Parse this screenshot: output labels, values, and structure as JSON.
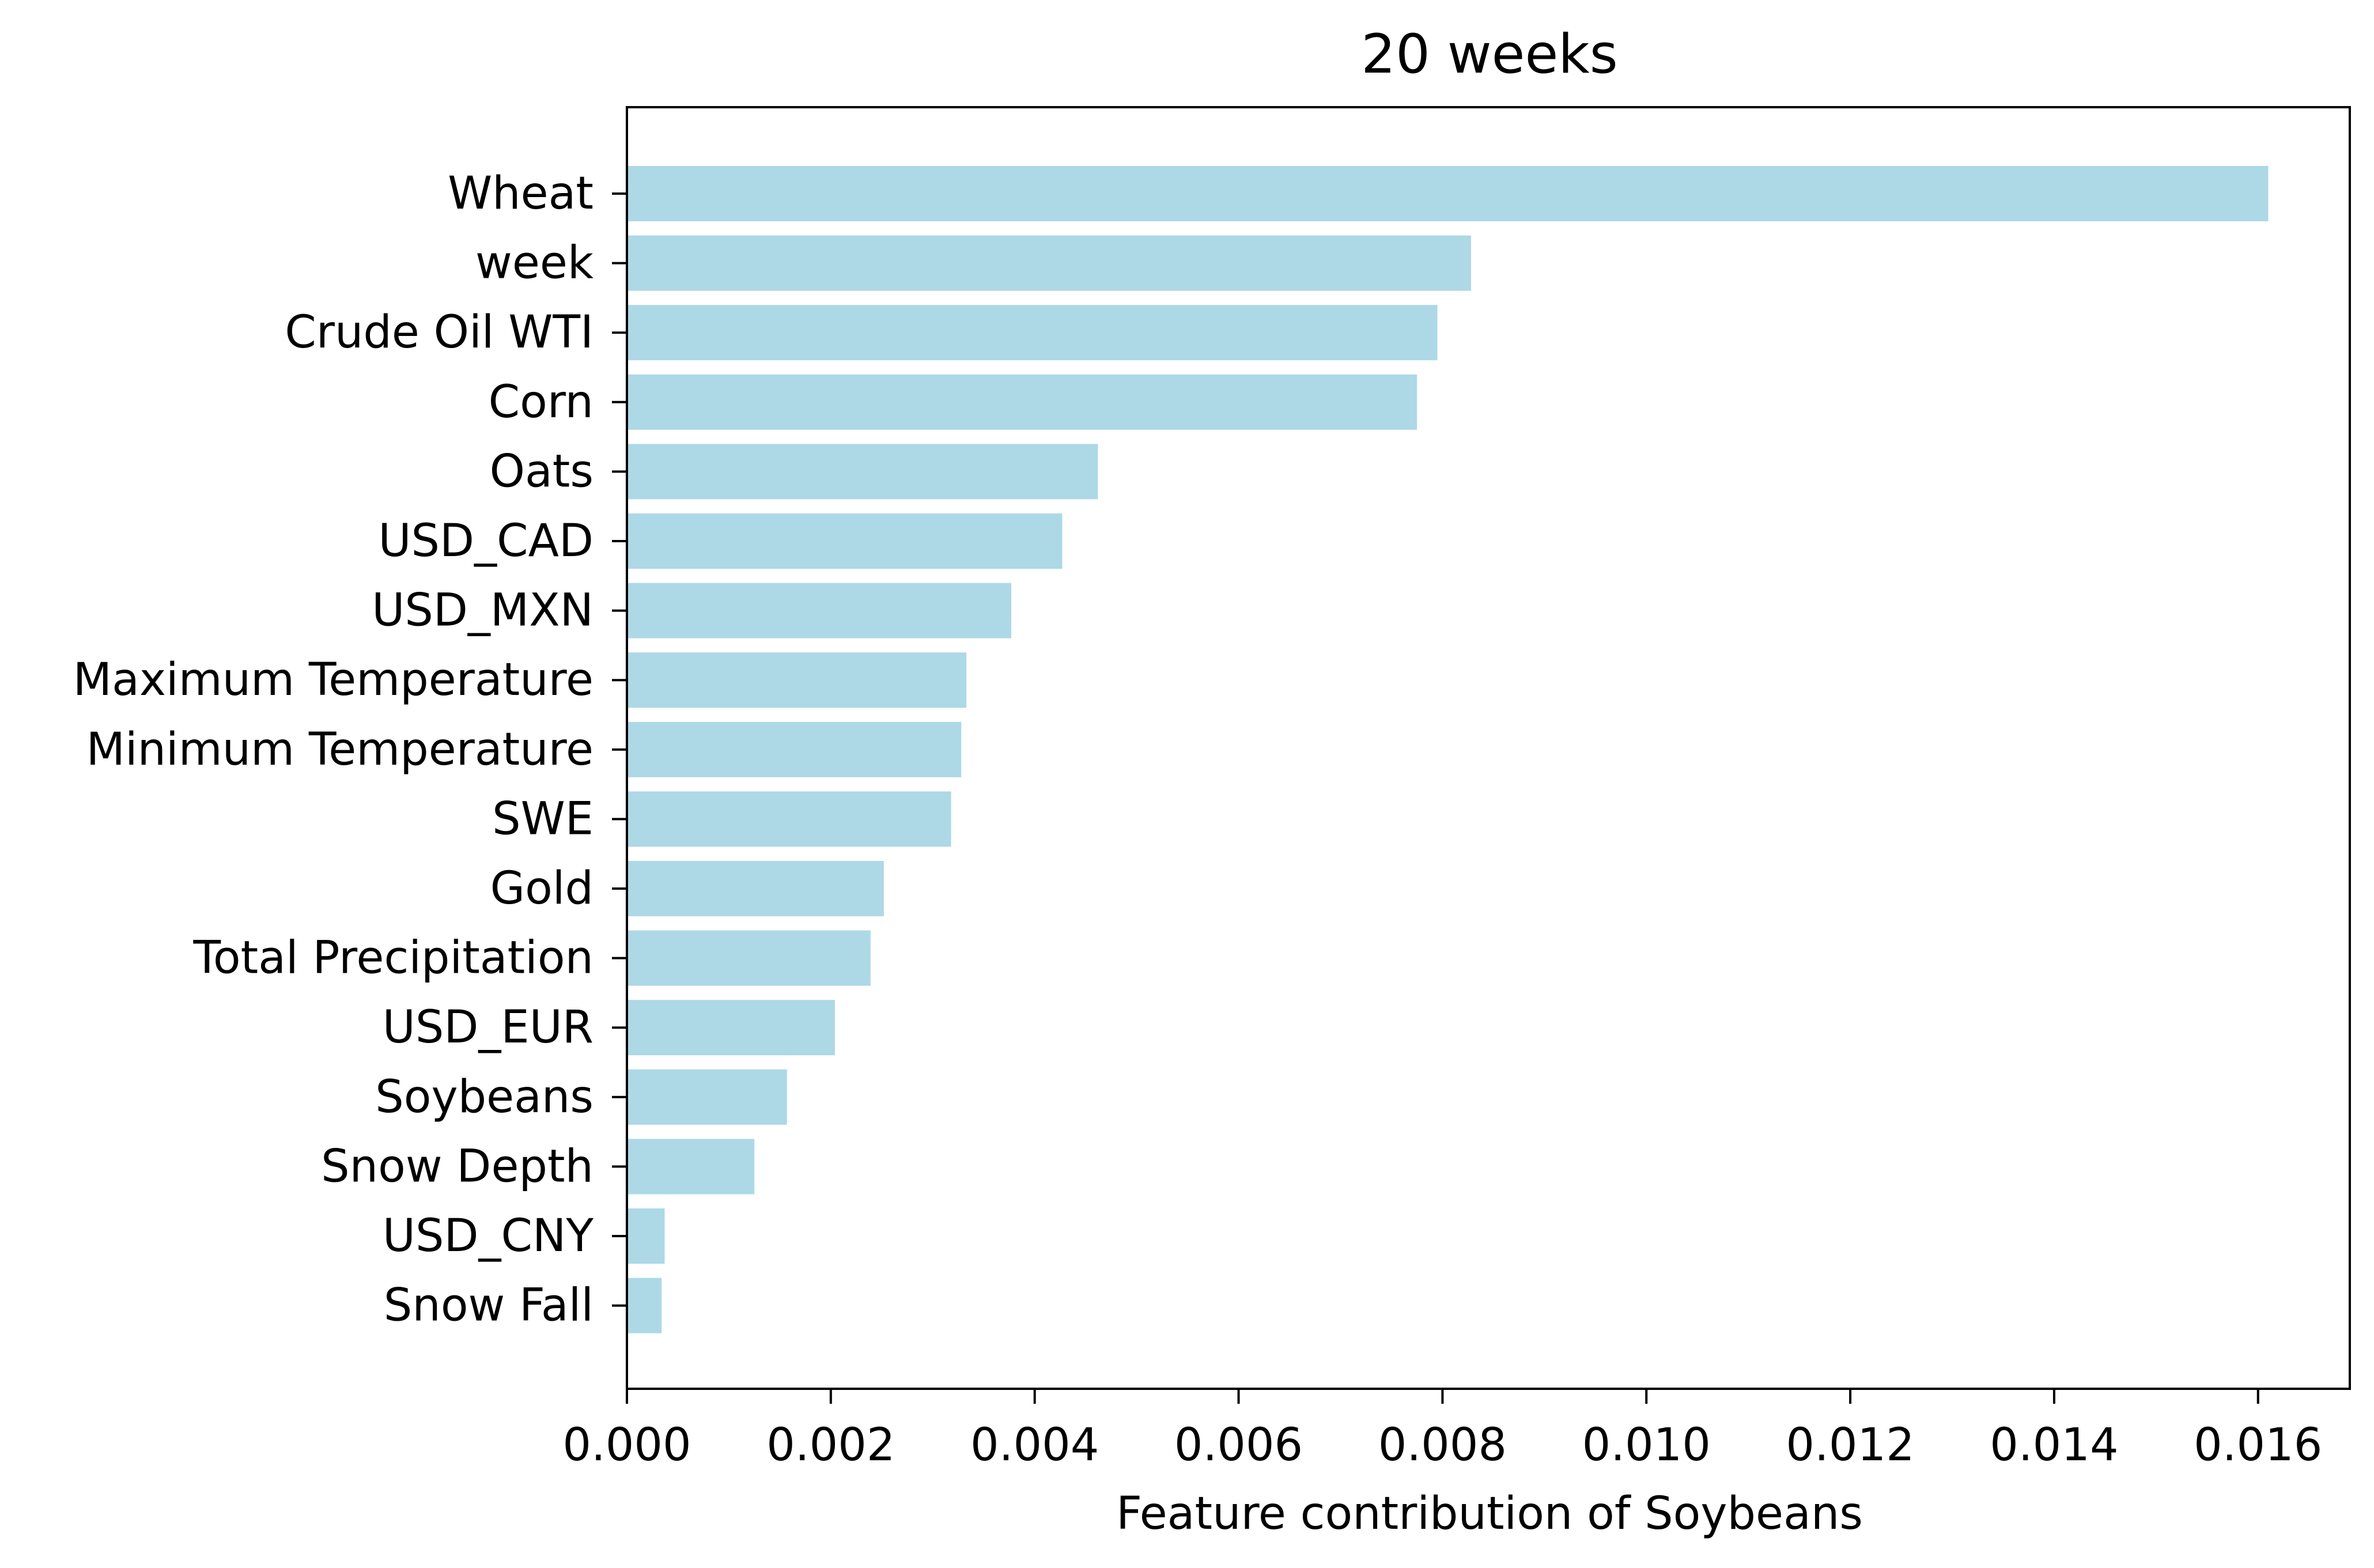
{
  "chart_data": {
    "type": "bar",
    "orientation": "horizontal",
    "title": "20 weeks",
    "xlabel": "Feature contribution of Soybeans",
    "ylabel": "",
    "xlim": [
      0,
      0.0169
    ],
    "xticks": [
      "0.000",
      "0.002",
      "0.004",
      "0.006",
      "0.008",
      "0.010",
      "0.012",
      "0.014",
      "0.016"
    ],
    "xtick_values": [
      0,
      0.002,
      0.004,
      0.006,
      0.008,
      0.01,
      0.012,
      0.014,
      0.016
    ],
    "categories": [
      "Wheat",
      "week",
      "Crude Oil WTI",
      "Corn",
      "Oats",
      "USD_CAD",
      "USD_MXN",
      "Maximum Temperature",
      "Minimum Temperature",
      "SWE",
      "Gold",
      "Total Precipitation",
      "USD_EUR",
      "Soybeans",
      "Snow Depth",
      "USD_CNY",
      "Snow Fall"
    ],
    "values": [
      0.0161,
      0.00828,
      0.00795,
      0.00775,
      0.00462,
      0.00427,
      0.00377,
      0.00333,
      0.00328,
      0.00318,
      0.00252,
      0.00239,
      0.00204,
      0.00157,
      0.00125,
      0.00037,
      0.00034
    ],
    "bar_color": "#add8e6",
    "grid": false,
    "legend": "none"
  }
}
